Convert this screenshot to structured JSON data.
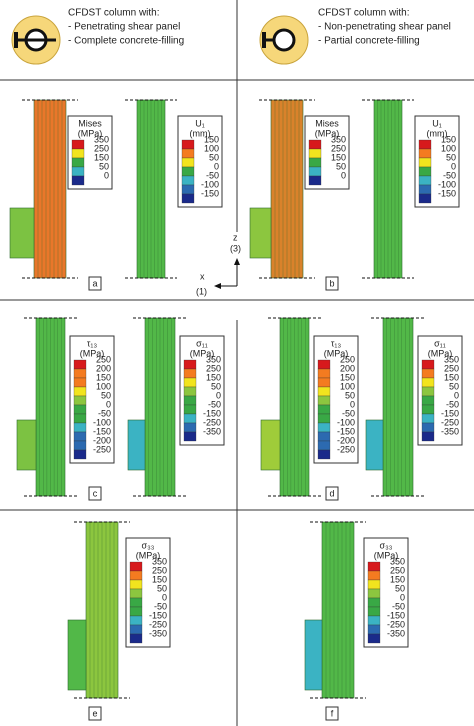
{
  "header": {
    "left": [
      "CFDST column with:",
      "- Penetrating shear panel",
      "- Complete concrete-filling"
    ],
    "right": [
      "CFDST column with:",
      "- Non-penetrating shear panel",
      "- Partial concrete-filling"
    ]
  },
  "axes": {
    "z": "z",
    "z_num": "(3)",
    "x": "x",
    "x_num": "(1)"
  },
  "panels": [
    {
      "letter": "a",
      "legends": [
        {
          "title": [
            "Mises",
            "(MPa)"
          ],
          "labels": [
            "350",
            "250",
            "150",
            "50",
            "0"
          ]
        },
        {
          "title": [
            "U₁",
            "(mm)"
          ],
          "labels": [
            "150",
            "100",
            "50",
            "0",
            "-50",
            "-100",
            "-150"
          ]
        }
      ]
    },
    {
      "letter": "b",
      "legends": [
        {
          "title": [
            "Mises",
            "(MPa)"
          ],
          "labels": [
            "350",
            "250",
            "150",
            "50",
            "0"
          ]
        },
        {
          "title": [
            "U₁",
            "(mm)"
          ],
          "labels": [
            "150",
            "100",
            "50",
            "0",
            "-50",
            "-100",
            "-150"
          ]
        }
      ]
    },
    {
      "letter": "c",
      "legends": [
        {
          "title": [
            "τ₁₃",
            "(MPa)"
          ],
          "labels": [
            "250",
            "200",
            "150",
            "100",
            "50",
            "0",
            "-50",
            "-100",
            "-150",
            "-200",
            "-250"
          ]
        },
        {
          "title": [
            "σ₁₁",
            "(MPa)"
          ],
          "labels": [
            "350",
            "250",
            "150",
            "50",
            "0",
            "-50",
            "-150",
            "-250",
            "-350"
          ]
        }
      ]
    },
    {
      "letter": "d",
      "legends": [
        {
          "title": [
            "τ₁₃",
            "(MPa)"
          ],
          "labels": [
            "250",
            "200",
            "150",
            "100",
            "50",
            "0",
            "-50",
            "-100",
            "-150",
            "-200",
            "-250"
          ]
        },
        {
          "title": [
            "σ₁₁",
            "(MPa)"
          ],
          "labels": [
            "350",
            "250",
            "150",
            "50",
            "0",
            "-50",
            "-150",
            "-250",
            "-350"
          ]
        }
      ]
    },
    {
      "letter": "e",
      "legends": [
        {
          "title": [
            "σ₃₃",
            "(MPa)"
          ],
          "labels": [
            "350",
            "250",
            "150",
            "50",
            "0",
            "-50",
            "-150",
            "-250",
            "-350"
          ]
        }
      ]
    },
    {
      "letter": "f",
      "legends": [
        {
          "title": [
            "σ₃₃",
            "(MPa)"
          ],
          "labels": [
            "350",
            "250",
            "150",
            "50",
            "0",
            "-50",
            "-150",
            "-250",
            "-350"
          ]
        }
      ]
    }
  ]
}
